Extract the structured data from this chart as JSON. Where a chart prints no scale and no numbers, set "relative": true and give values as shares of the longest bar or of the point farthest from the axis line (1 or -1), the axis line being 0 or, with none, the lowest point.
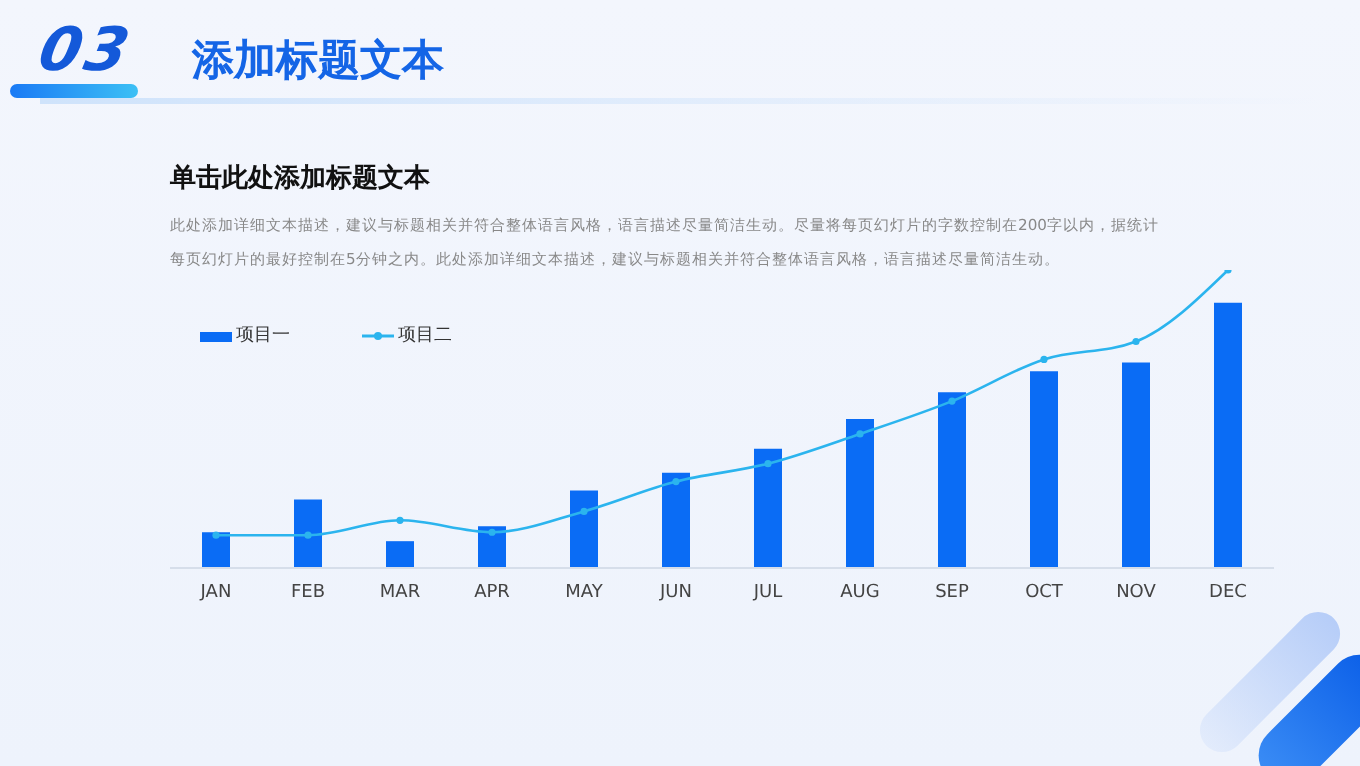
{
  "chart_data": {
    "type": "bar",
    "title": "添加标题文本",
    "subtitle": "单击此处添加标题文本",
    "annotations": [
      "03",
      "此处添加详细文本描述，建议与标题相关并符合整体语言风格，语言描述尽量简洁生动。尽量将每页幻灯片的字数控制在200字以内，据统计每页幻灯片的最好控制在5分钟之内。此处添加详细文本描述，建议与标题相关并符合整体语言风格，语言描述尽量简洁生动。"
    ],
    "categories": [
      "JAN",
      "FEB",
      "MAR",
      "APR",
      "MAY",
      "JUN",
      "JUL",
      "AUG",
      "SEP",
      "OCT",
      "NOV",
      "DEC"
    ],
    "relative": true,
    "legend": "top left",
    "marker": "circle",
    "series": [
      {
        "name": "项目一",
        "color": "#0a6cf5",
        "values": [
          0.12,
          0.23,
          0.09,
          0.14,
          0.26,
          0.32,
          0.4,
          0.5,
          0.59,
          0.66,
          0.69,
          0.89
        ]
      },
      {
        "name": "项目二",
        "type": "line",
        "color": "#2bb4ee",
        "values": [
          0.11,
          0.11,
          0.16,
          0.12,
          0.19,
          0.29,
          0.35,
          0.45,
          0.56,
          0.7,
          0.76,
          1
        ]
      }
    ]
  }
}
